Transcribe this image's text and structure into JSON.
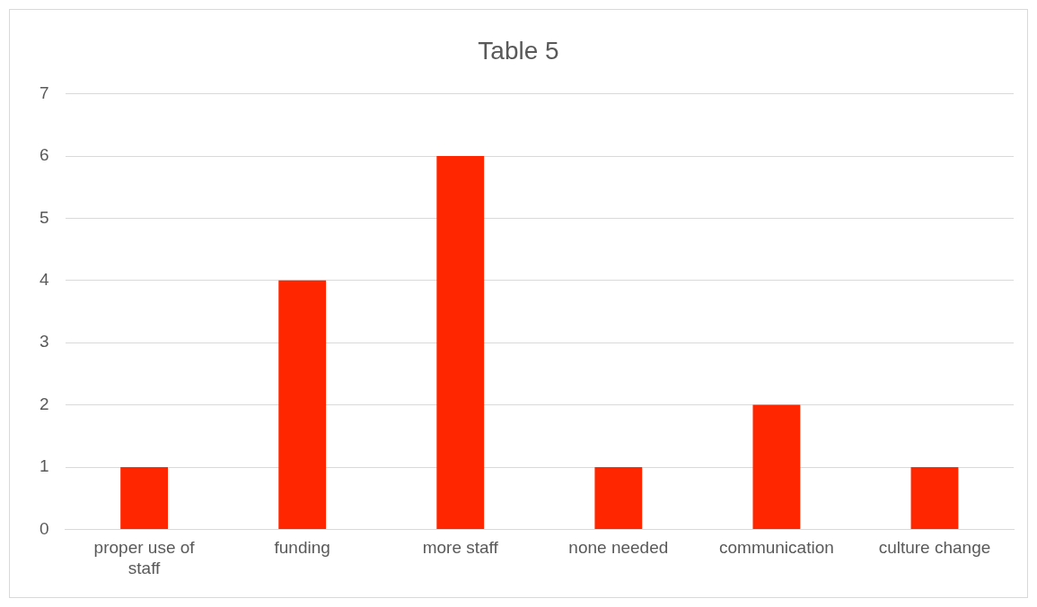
{
  "chart_data": {
    "type": "bar",
    "title": "Table 5",
    "categories": [
      "proper use of staff",
      "funding",
      "more staff",
      "none needed",
      "communication",
      "culture change"
    ],
    "values": [
      1,
      4,
      6,
      1,
      2,
      1
    ],
    "color": "#ff2600",
    "ylim": [
      0,
      7
    ],
    "yticks": [
      0,
      1,
      2,
      3,
      4,
      5,
      6,
      7
    ],
    "grid": "y",
    "legend": false
  }
}
